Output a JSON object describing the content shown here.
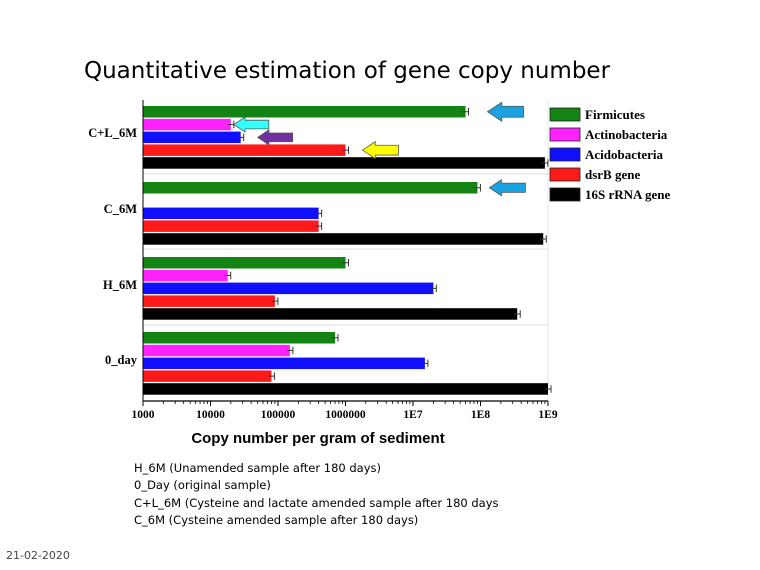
{
  "slide": {
    "title": "Quantitative estimation of gene copy number",
    "notes": [
      "H_6M (Unamended sample after 180 days)",
      "0_Day (original sample)",
      "C+L_6M (Cysteine and lactate amended sample after 180 days",
      "C_6M (Cysteine amended sample after 180 days)"
    ],
    "date": "21-02-2020"
  },
  "chart_data": {
    "type": "bar",
    "orientation": "horizontal",
    "xscale": "log",
    "xlim": [
      1000,
      1000000000
    ],
    "xlabel": "Copy number per gram of sediment",
    "ylabel": "",
    "xticks": [
      "1000",
      "10000",
      "100000",
      "1000000",
      "1E7",
      "1E8",
      "1E9"
    ],
    "categories": [
      "C+L_6M",
      "C_6M",
      "H_6M",
      "0_day"
    ],
    "series": [
      {
        "name": "Firmicutes",
        "color": "#138313",
        "values": [
          60000000,
          90000000,
          1000000,
          700000
        ]
      },
      {
        "name": "Actinobacteria",
        "color": "#ff22ff",
        "values": [
          20000,
          null,
          18000,
          150000
        ]
      },
      {
        "name": "Acidobacteria",
        "color": "#1010ff",
        "values": [
          28000,
          400000,
          20000000,
          15000000
        ]
      },
      {
        "name": "dsrB gene",
        "color": "#ff1a1a",
        "values": [
          1000000,
          400000,
          90000,
          80000
        ]
      },
      {
        "name": "16S rRNA gene",
        "color": "#000000",
        "values": [
          900000000,
          850000000,
          350000000,
          1000000000
        ]
      }
    ],
    "legend_position": "top-right",
    "annotations": [
      {
        "shape": "arrow",
        "direction": "left",
        "color": "#1aa3e0",
        "category": "C+L_6M",
        "series": "Firmicutes"
      },
      {
        "shape": "arrow",
        "direction": "left",
        "color": "#33ffff",
        "category": "C+L_6M",
        "series": "Actinobacteria"
      },
      {
        "shape": "arrow",
        "direction": "left",
        "color": "#7030a0",
        "category": "C+L_6M",
        "series": "Acidobacteria"
      },
      {
        "shape": "arrow",
        "direction": "left",
        "color": "#ffff00",
        "category": "C+L_6M",
        "series": "dsrB gene"
      },
      {
        "shape": "arrow",
        "direction": "left",
        "color": "#1aa3e0",
        "category": "C_6M",
        "series": "Firmicutes"
      }
    ]
  }
}
